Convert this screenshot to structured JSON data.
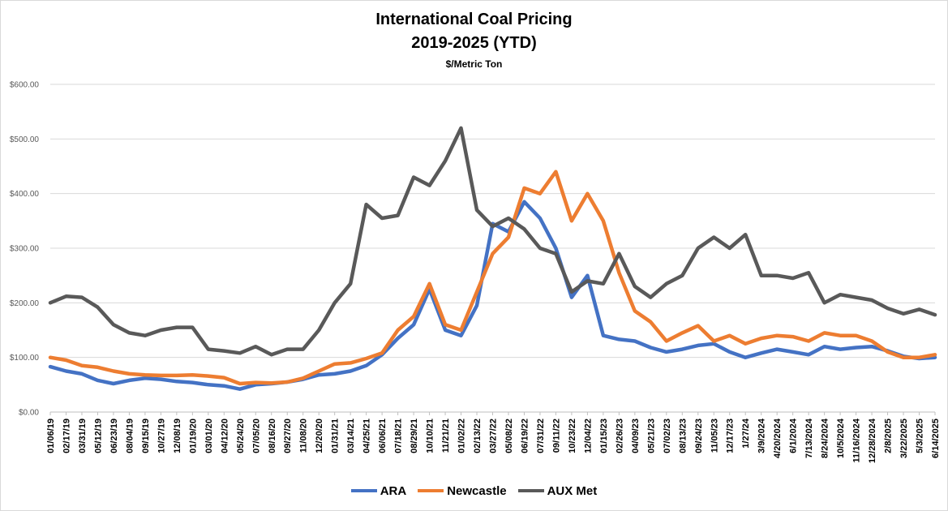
{
  "chart_data": {
    "type": "line",
    "title": "International Coal Pricing",
    "subtitle": "2019-2025 (YTD)",
    "unit_label": "$/Metric Ton",
    "ylim": [
      0,
      600
    ],
    "y_ticks": [
      "$0.00",
      "$100.00",
      "$200.00",
      "$300.00",
      "$400.00",
      "$500.00",
      "$600.00"
    ],
    "grid": "horizontal",
    "legend_position": "bottom",
    "x_tick_labels": [
      "01/06/19",
      "02/17/19",
      "03/31/19",
      "05/12/19",
      "06/23/19",
      "08/04/19",
      "09/15/19",
      "10/27/19",
      "12/08/19",
      "01/19/20",
      "03/01/20",
      "04/12/20",
      "05/24/20",
      "07/05/20",
      "08/16/20",
      "09/27/20",
      "11/08/20",
      "12/20/20",
      "01/31/21",
      "03/14/21",
      "04/25/21",
      "06/06/21",
      "07/18/21",
      "08/29/21",
      "10/10/21",
      "11/21/21",
      "01/02/22",
      "02/13/22",
      "03/27/22",
      "05/08/22",
      "06/19/22",
      "07/31/22",
      "09/11/22",
      "10/23/22",
      "12/04/22",
      "01/15/23",
      "02/26/23",
      "04/09/23",
      "05/21/23",
      "07/02/23",
      "08/13/23",
      "09/24/23",
      "11/05/23",
      "12/17/23",
      "1/27/24",
      "3/9/2024",
      "4/20/2024",
      "6/1/2024",
      "7/13/2024",
      "8/24/2024",
      "10/5/2024",
      "11/16/2024",
      "12/28/2024",
      "2/8/2025",
      "3/22/2025",
      "5/3/2025",
      "6/14/2025"
    ],
    "series": [
      {
        "name": "ARA",
        "color": "#4472c4",
        "values": [
          83,
          75,
          70,
          58,
          52,
          58,
          62,
          60,
          56,
          54,
          50,
          48,
          42,
          50,
          52,
          55,
          60,
          68,
          70,
          75,
          85,
          105,
          135,
          160,
          225,
          150,
          140,
          195,
          345,
          330,
          385,
          355,
          300,
          210,
          250,
          140,
          133,
          130,
          118,
          110,
          115,
          122,
          125,
          110,
          100,
          108,
          115,
          110,
          105,
          120,
          115,
          118,
          120,
          112,
          102,
          98,
          100
        ]
      },
      {
        "name": "Newcastle",
        "color": "#ed7d31",
        "values": [
          100,
          95,
          85,
          82,
          75,
          70,
          68,
          67,
          67,
          68,
          66,
          63,
          52,
          54,
          53,
          55,
          62,
          75,
          88,
          90,
          98,
          108,
          150,
          175,
          235,
          160,
          150,
          220,
          290,
          320,
          410,
          400,
          440,
          350,
          400,
          350,
          255,
          185,
          165,
          130,
          145,
          158,
          130,
          140,
          125,
          135,
          140,
          138,
          130,
          145,
          140,
          140,
          130,
          110,
          100,
          100,
          105
        ]
      },
      {
        "name": "AUX Met",
        "color": "#595959",
        "values": [
          200,
          212,
          210,
          192,
          160,
          145,
          140,
          150,
          155,
          155,
          115,
          112,
          108,
          120,
          105,
          115,
          115,
          150,
          200,
          235,
          380,
          355,
          360,
          430,
          415,
          460,
          520,
          370,
          340,
          355,
          335,
          300,
          290,
          220,
          240,
          235,
          290,
          230,
          210,
          235,
          250,
          300,
          320,
          300,
          325,
          250,
          250,
          245,
          255,
          200,
          215,
          210,
          205,
          190,
          180,
          188,
          178
        ]
      }
    ]
  }
}
